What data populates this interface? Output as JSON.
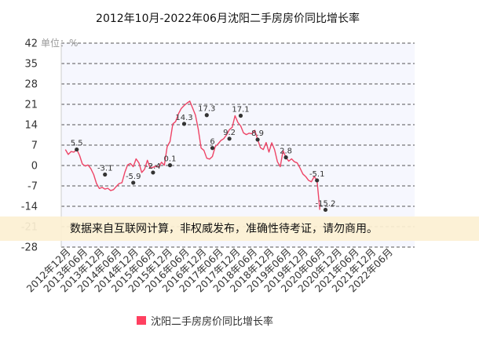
{
  "colors": {
    "line": "#ee4466",
    "marker": "#333333",
    "grid": "#555555",
    "plot_bg": "#f6f7fe",
    "banner_bg": "#fcf0d2",
    "legend_swatch": "#ff4060"
  },
  "chart_data": {
    "type": "line",
    "title": "2012年10月-2022年06月沈阳二手房房价同比增长率",
    "unit_label": "单位：%",
    "ylim": [
      -28,
      42
    ],
    "yticks": [
      "42",
      "35",
      "28",
      "21",
      "14",
      "7",
      "0",
      "-7",
      "-14",
      "-21",
      "-28"
    ],
    "xticks": [
      "2012年12月",
      "2013年06月",
      "2013年12月",
      "2014年06月",
      "2014年12月",
      "2015年06月",
      "2015年12月",
      "2016年06月",
      "2016年12月",
      "2017年06月",
      "2017年12月",
      "2018年06月",
      "2018年12月",
      "2019年06月",
      "2019年12月",
      "2020年06月",
      "2020年12月",
      "2021年06月",
      "2021年12月",
      "2022年06月"
    ],
    "grid": "horizontal dashed",
    "legend_position": "bottom",
    "watermark": "数据来自互联网计算，非权威发布，准确性待考证，请勿商用。",
    "series": [
      {
        "name": "沈阳二手房房价同比增长率",
        "start": "2012-10",
        "values": [
          5.5,
          3.8,
          4.8,
          4.6,
          5.5,
          3.5,
          0.5,
          -0.2,
          0.2,
          -1.1,
          -3.1,
          -6.2,
          -7.9,
          -7.5,
          -8.1,
          -7.8,
          -8.6,
          -8.3,
          -7.2,
          -6.2,
          -5.9,
          -2.4,
          0.2,
          0.7,
          -0.4,
          2.3,
          0.9,
          -2.4,
          -1.3,
          1.8,
          -0.9,
          -0.6,
          -0.3,
          -0.5,
          1.1,
          0.1,
          6.5,
          8.2,
          14.3,
          15.1,
          17.8,
          19.6,
          20.6,
          21.4,
          22.1,
          19.7,
          17.3,
          12.4,
          6.0,
          5.2,
          2.5,
          2.2,
          3.1,
          6.5,
          7.4,
          8.6,
          9.2,
          10.5,
          12.3,
          13.1,
          17.1,
          14.8,
          13.6,
          11.2,
          10.6,
          11.1,
          10.9,
          12.1,
          8.9,
          6.1,
          5.5,
          7.9,
          4.6,
          7.8,
          5.4,
          1.3,
          -0.4,
          5.1,
          2.8,
          1.5,
          2.3,
          1.3,
          0.9,
          -0.9,
          -2.9,
          -3.8,
          -5.1,
          -5.6,
          -3.8,
          -5.1,
          -15.2
        ],
        "labels": [
          {
            "x": "2013-02",
            "value": "5.5"
          },
          {
            "x": "2013-12",
            "value": "-3.1"
          },
          {
            "x": "2014-10",
            "value": "-5.9"
          },
          {
            "x": "2015-05",
            "value": "-2.4"
          },
          {
            "x": "2015-11",
            "value": "0.1"
          },
          {
            "x": "2016-04",
            "value": "14.3"
          },
          {
            "x": "2016-12",
            "value": "17.3"
          },
          {
            "x": "2017-02",
            "value": "6"
          },
          {
            "x": "2017-08",
            "value": "9.2"
          },
          {
            "x": "2017-12",
            "value": "17.1"
          },
          {
            "x": "2018-06",
            "value": "8.9"
          },
          {
            "x": "2019-04",
            "value": "2.8"
          },
          {
            "x": "2020-03",
            "value": "-5.1"
          },
          {
            "x": "2020-06",
            "value": "-15.2"
          }
        ]
      }
    ]
  }
}
